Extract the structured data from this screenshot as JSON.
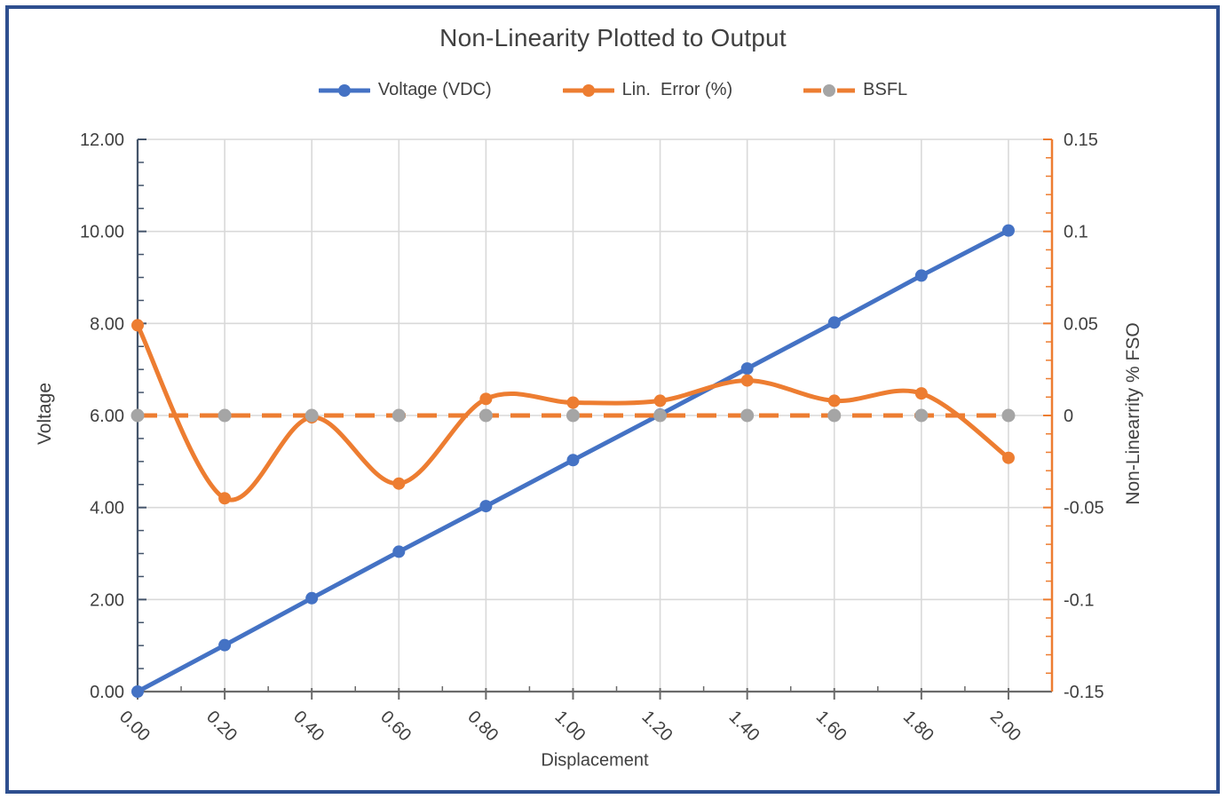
{
  "chart_data": {
    "type": "line",
    "title": "Non-Linearity Plotted to Output",
    "legend_position": "top",
    "grid": true,
    "x": {
      "title": "Displacement",
      "min": 0,
      "max": 2.1,
      "major_step": 0.2,
      "minor_step": 0.1,
      "values": [
        0.0,
        0.2,
        0.4,
        0.6,
        0.8,
        1.0,
        1.2,
        1.4,
        1.6,
        1.8,
        2.0
      ],
      "tick_labels": [
        "0.00",
        "0.20",
        "0.40",
        "0.60",
        "0.80",
        "1.00",
        "1.20",
        "1.40",
        "1.60",
        "1.80",
        "2.00"
      ]
    },
    "y_left": {
      "title": "Voltage",
      "min": 0,
      "max": 12,
      "major_step": 2,
      "minor_step": 0.5,
      "tick_labels": [
        "0.00",
        "2.00",
        "4.00",
        "6.00",
        "8.00",
        "10.00",
        "12.00"
      ]
    },
    "y_right": {
      "title": "Non-Linearrity % FSO",
      "min": -0.15,
      "max": 0.15,
      "major_step": 0.05,
      "minor_step": 0.01,
      "tick_labels": [
        "-0.15",
        "-0.1",
        "-0.05",
        "0",
        "0.05",
        "0.1",
        "0.15"
      ]
    },
    "series": [
      {
        "name": "Voltage (VDC)",
        "axis": "left",
        "color": "#4472C4",
        "marker_color": "#4472C4",
        "marker_radius": 7,
        "line_style": "solid",
        "smooth": false,
        "values": [
          0.0,
          1.01,
          2.03,
          3.04,
          4.03,
          5.03,
          6.02,
          7.02,
          8.02,
          9.04,
          10.02
        ]
      },
      {
        "name": "Lin.  Error (%)",
        "axis": "right",
        "color": "#ED7D31",
        "marker_color": "#ED7D31",
        "marker_radius": 7,
        "line_style": "solid",
        "smooth": true,
        "values": [
          0.049,
          -0.045,
          -0.001,
          -0.037,
          0.009,
          0.007,
          0.008,
          0.019,
          0.008,
          0.012,
          -0.023
        ]
      },
      {
        "name": "BSFL",
        "axis": "right",
        "color": "#ED7D31",
        "marker_color": "#A5A5A5",
        "marker_radius": 7.5,
        "line_style": "dashed",
        "smooth": false,
        "values": [
          0,
          0,
          0,
          0,
          0,
          0,
          0,
          0,
          0,
          0,
          0
        ]
      }
    ]
  },
  "colors": {
    "border_color": "#2E4F8F",
    "text_color": "#404040",
    "gridline_color": "#D9D9D9",
    "left_axis_color": "#44546A",
    "bottom_axis_color": "#6A6A6A",
    "right_axis_color": "#ED7D31",
    "background_color": "#FFFFFF"
  }
}
